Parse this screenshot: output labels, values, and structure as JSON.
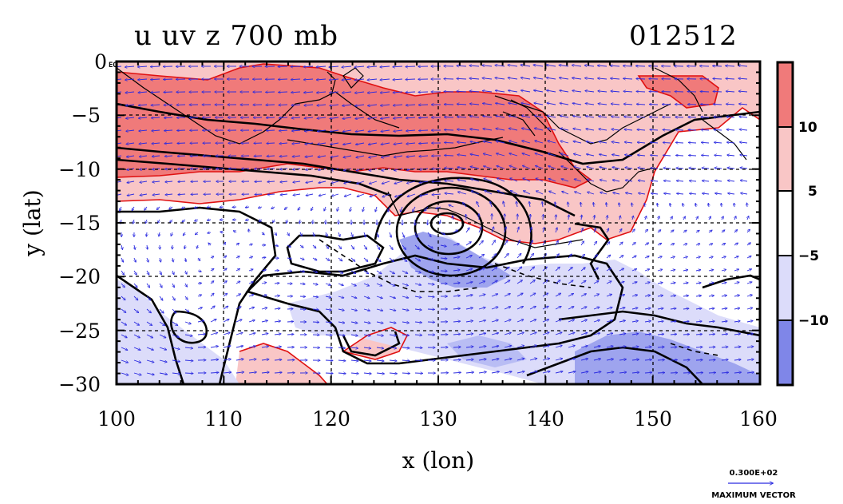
{
  "chart_data": {
    "type": "contour",
    "title": "u uv z 700 mb",
    "title_right": "012512",
    "xlabel": "x (lon)",
    "ylabel": "y (lat)",
    "xlim": [
      100,
      160
    ],
    "ylim": [
      -30,
      0
    ],
    "x_ticks": [
      "100",
      "110",
      "120",
      "130",
      "140",
      "150",
      "160"
    ],
    "y_ticks": [
      "0",
      "−5",
      "−10",
      "−15",
      "−20",
      "−25",
      "−30"
    ],
    "y_top_suffix": "EQ",
    "grid": true,
    "colorbar": {
      "labels": [
        "10",
        "5",
        "−5",
        "−10"
      ],
      "levels": [
        -10,
        -5,
        5,
        10
      ],
      "colors": [
        "#7f86e8",
        "#dcdcfa",
        "#ffffff",
        "#f9c6c6",
        "#f07a7a"
      ]
    },
    "vector_key": {
      "value_label": "0.300E+02",
      "caption": "MAXIMUM VECTOR"
    },
    "features": {
      "cyclone_center": {
        "lon": 131,
        "lat": -15
      },
      "easterly_jet_lat_range": [
        -12,
        -2
      ],
      "secondary_low": {
        "lon": 107,
        "lat": -24
      }
    }
  }
}
